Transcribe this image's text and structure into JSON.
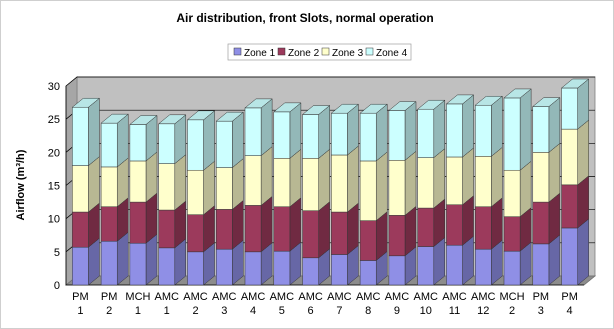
{
  "chart_data": {
    "type": "bar",
    "stacked": true,
    "three_d": true,
    "title": "Air distribution, front Slots, normal operation",
    "xlabel": "",
    "ylabel": "Airflow (m³/h)",
    "ylim": [
      0,
      30
    ],
    "yticks": [
      0,
      5,
      10,
      15,
      20,
      25,
      30
    ],
    "grid": true,
    "legend_position": "top",
    "categories": [
      [
        "PM",
        "1"
      ],
      [
        "PM",
        "2"
      ],
      [
        "MCH",
        "1"
      ],
      [
        "AMC",
        "1"
      ],
      [
        "AMC",
        "2"
      ],
      [
        "AMC",
        "3"
      ],
      [
        "AMC",
        "4"
      ],
      [
        "AMC",
        "5"
      ],
      [
        "AMC",
        "6"
      ],
      [
        "AMC",
        "7"
      ],
      [
        "AMC",
        "8"
      ],
      [
        "AMC",
        "9"
      ],
      [
        "AMC",
        "10"
      ],
      [
        "AMC",
        "11"
      ],
      [
        "AMC",
        "12"
      ],
      [
        "MCH",
        "2"
      ],
      [
        "PM",
        "3"
      ],
      [
        "PM",
        "4"
      ]
    ],
    "series": [
      {
        "name": "Zone 1",
        "color": "#8f8fe6",
        "values": [
          5.7,
          6.6,
          6.3,
          5.6,
          5.0,
          5.4,
          5.0,
          5.1,
          4.1,
          4.6,
          3.7,
          4.4,
          5.8,
          6.0,
          5.4,
          5.1,
          6.2,
          8.6
        ]
      },
      {
        "name": "Zone 2",
        "color": "#9c3a5c",
        "values": [
          5.3,
          5.2,
          6.2,
          5.7,
          5.6,
          6.0,
          7.0,
          6.7,
          7.1,
          6.4,
          6.0,
          6.1,
          5.8,
          6.1,
          6.4,
          5.2,
          6.3,
          6.5
        ]
      },
      {
        "name": "Zone 3",
        "color": "#ffffcc",
        "values": [
          7.0,
          6.0,
          6.2,
          7.0,
          6.7,
          6.3,
          7.5,
          7.3,
          7.9,
          8.6,
          9.0,
          8.3,
          7.6,
          7.2,
          7.6,
          7.0,
          7.5,
          8.4
        ]
      },
      {
        "name": "Zone 4",
        "color": "#ccffff",
        "values": [
          8.8,
          6.6,
          5.5,
          6.0,
          7.6,
          7.0,
          7.2,
          7.0,
          6.6,
          6.3,
          7.2,
          7.5,
          7.3,
          8.0,
          7.7,
          10.9,
          6.9,
          6.2
        ]
      }
    ]
  }
}
